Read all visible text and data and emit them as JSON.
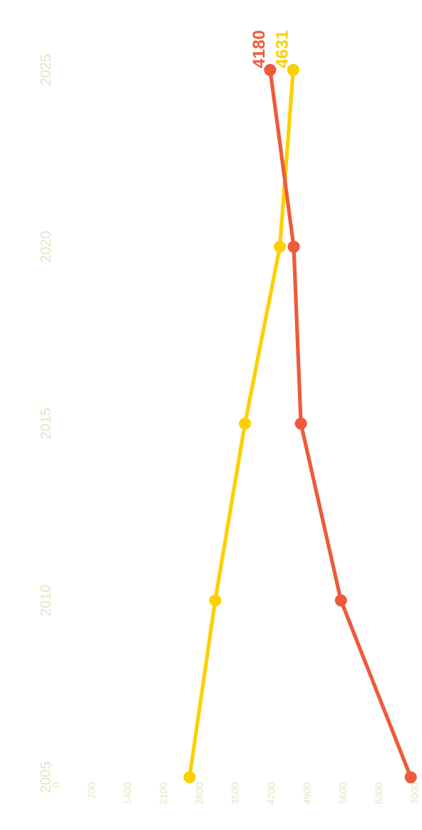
{
  "chart_data": {
    "type": "line",
    "xlim": [
      0,
      7000
    ],
    "xticks": [
      0,
      700,
      1400,
      2100,
      2800,
      3500,
      4200,
      4900,
      5600,
      6300,
      7000
    ],
    "ylim": [
      2005,
      2025
    ],
    "yticks": [
      2005,
      2010,
      2015,
      2020,
      2025
    ],
    "marker": "circle",
    "grid": false,
    "series": [
      {
        "color": "#fdd000",
        "x": [
          2610,
          3110,
          3690,
          4370,
          4631
        ],
        "values": [
          2005,
          2010,
          2015,
          2020,
          2025
        ]
      },
      {
        "color": "#ee5a3a",
        "x": [
          6920,
          5560,
          4780,
          4640,
          4180
        ],
        "values": [
          2005,
          2010,
          2015,
          2020,
          2025
        ]
      }
    ],
    "annotations": [
      {
        "text": "4631",
        "x": 4631,
        "y": 2025
      },
      {
        "text": "4180",
        "x": 4180,
        "y": 2025
      }
    ]
  }
}
